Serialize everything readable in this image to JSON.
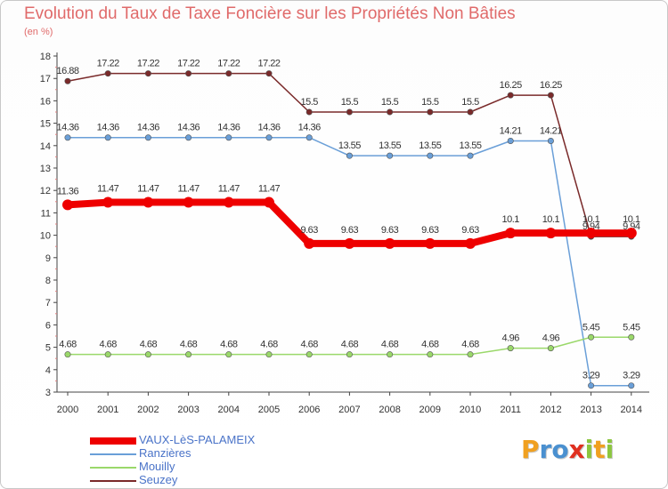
{
  "chart_data": {
    "type": "line",
    "title": "Evolution du Taux de Taxe Foncière sur les Propriétés Non Bâties",
    "subtitle": "(en %)",
    "x": [
      "2000",
      "2001",
      "2002",
      "2003",
      "2004",
      "2005",
      "2006",
      "2007",
      "2008",
      "2009",
      "2010",
      "2011",
      "2012",
      "2013",
      "2014"
    ],
    "ylim": [
      3,
      18
    ],
    "yticks": [
      "3",
      "4",
      "5",
      "6",
      "7",
      "8",
      "9",
      "10",
      "11",
      "12",
      "13",
      "14",
      "15",
      "16",
      "17",
      "18"
    ],
    "series": [
      {
        "name": "VAUX-LèS-PALAMEIX",
        "color": "#ee0000",
        "width": 8,
        "values": [
          11.36,
          11.47,
          11.47,
          11.47,
          11.47,
          11.47,
          9.63,
          9.63,
          9.63,
          9.63,
          9.63,
          10.1,
          10.1,
          10.1,
          10.1
        ],
        "labels": [
          "11.36",
          "11.47",
          "11.47",
          "11.47",
          "11.47",
          "11.47",
          "9.63",
          "9.63",
          "9.63",
          "9.63",
          "9.63",
          "10.1",
          "10.1",
          "10.1",
          "10.1"
        ]
      },
      {
        "name": "Ranzières",
        "color": "#6a9fd8",
        "width": 1.5,
        "values": [
          14.36,
          14.36,
          14.36,
          14.36,
          14.36,
          14.36,
          14.36,
          13.55,
          13.55,
          13.55,
          13.55,
          14.21,
          14.21,
          3.29,
          3.29
        ],
        "labels": [
          "14.36",
          "14.36",
          "14.36",
          "14.36",
          "14.36",
          "14.36",
          "14.36",
          "13.55",
          "13.55",
          "13.55",
          "13.55",
          "14.21",
          "14.21",
          "3.29",
          "3.29"
        ]
      },
      {
        "name": "Mouilly",
        "color": "#9ad86a",
        "width": 1.5,
        "values": [
          4.68,
          4.68,
          4.68,
          4.68,
          4.68,
          4.68,
          4.68,
          4.68,
          4.68,
          4.68,
          4.68,
          4.96,
          4.96,
          5.45,
          5.45
        ],
        "labels": [
          "4.68",
          "4.68",
          "4.68",
          "4.68",
          "4.68",
          "4.68",
          "4.68",
          "4.68",
          "4.68",
          "4.68",
          "4.68",
          "4.96",
          "4.96",
          "5.45",
          "5.45"
        ]
      },
      {
        "name": "Seuzey",
        "color": "#7a2a2a",
        "width": 1.5,
        "values": [
          16.88,
          17.22,
          17.22,
          17.22,
          17.22,
          17.22,
          15.5,
          15.5,
          15.5,
          15.5,
          15.5,
          16.25,
          16.25,
          9.94,
          9.94
        ],
        "labels": [
          "16.88",
          "17.22",
          "17.22",
          "17.22",
          "17.22",
          "17.22",
          "15.5",
          "15.5",
          "15.5",
          "15.5",
          "15.5",
          "16.25",
          "16.25",
          "9.94",
          "9.94"
        ]
      }
    ],
    "legend_position": "bottom-left",
    "grid": false
  },
  "branding": {
    "logo_letters": [
      "P",
      "r",
      "o",
      "x",
      "i",
      "t",
      "i"
    ]
  }
}
